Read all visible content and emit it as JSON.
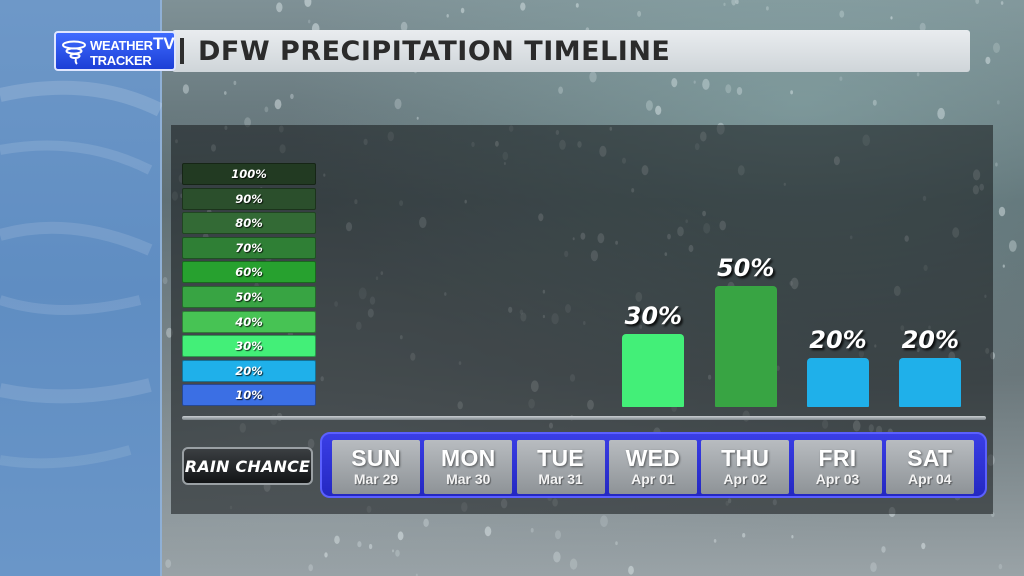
{
  "logo": {
    "line1": "WEATHER",
    "line2": "TRACKER",
    "tv": "TV"
  },
  "title": "DFW PRECIPITATION TIMELINE",
  "rain_chance_label": "RAIN CHANCE",
  "legend": [
    {
      "label": "100%",
      "color": "#223a22"
    },
    {
      "label": "90%",
      "color": "#2b4f2c"
    },
    {
      "label": "80%",
      "color": "#336a35"
    },
    {
      "label": "70%",
      "color": "#2f7f35"
    },
    {
      "label": "60%",
      "color": "#27a12f"
    },
    {
      "label": "50%",
      "color": "#38a443"
    },
    {
      "label": "40%",
      "color": "#47c354"
    },
    {
      "label": "30%",
      "color": "#43ef78"
    },
    {
      "label": "20%",
      "color": "#1fb0ea"
    },
    {
      "label": "10%",
      "color": "#3b6fe4"
    }
  ],
  "days": [
    {
      "day": "SUN",
      "date": "Mar 29"
    },
    {
      "day": "MON",
      "date": "Mar 30"
    },
    {
      "day": "TUE",
      "date": "Mar 31"
    },
    {
      "day": "WED",
      "date": "Apr 01"
    },
    {
      "day": "THU",
      "date": "Apr 02"
    },
    {
      "day": "FRI",
      "date": "Apr 03"
    },
    {
      "day": "SAT",
      "date": "Apr 04"
    }
  ],
  "chart_data": {
    "type": "bar",
    "title": "DFW PRECIPITATION TIMELINE",
    "xlabel": "",
    "ylabel": "",
    "categories": [
      "SUN",
      "MON",
      "TUE",
      "WED",
      "THU",
      "FRI",
      "SAT"
    ],
    "values": [
      null,
      null,
      null,
      30,
      50,
      20,
      20
    ],
    "value_labels": [
      "",
      "",
      "",
      "30%",
      "50%",
      "20%",
      "20%"
    ],
    "bar_colors": [
      "",
      "",
      "",
      "#43ef78",
      "#38a443",
      "#1fb0ea",
      "#1fb0ea"
    ],
    "ylim": [
      0,
      100
    ]
  }
}
